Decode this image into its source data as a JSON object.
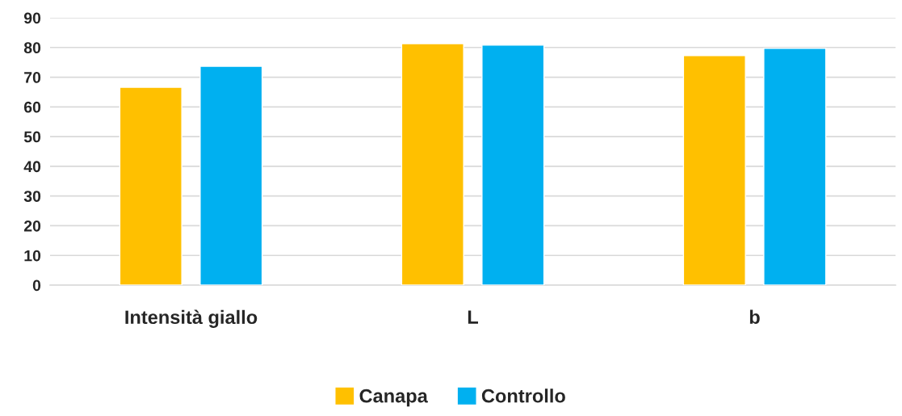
{
  "chart_data": {
    "type": "bar",
    "categories": [
      "Intensità giallo",
      "L",
      "b"
    ],
    "series": [
      {
        "name": "Canapa",
        "color": "#ffc000",
        "values": [
          66.6,
          81.3,
          77.3
        ]
      },
      {
        "name": "Controllo",
        "color": "#00b0f0",
        "values": [
          73.7,
          80.8,
          79.7
        ]
      }
    ],
    "ylim": [
      0,
      90
    ],
    "yticks": [
      0,
      10,
      20,
      30,
      40,
      50,
      60,
      70,
      80,
      90
    ],
    "grid": "y",
    "legend": "bottom"
  }
}
